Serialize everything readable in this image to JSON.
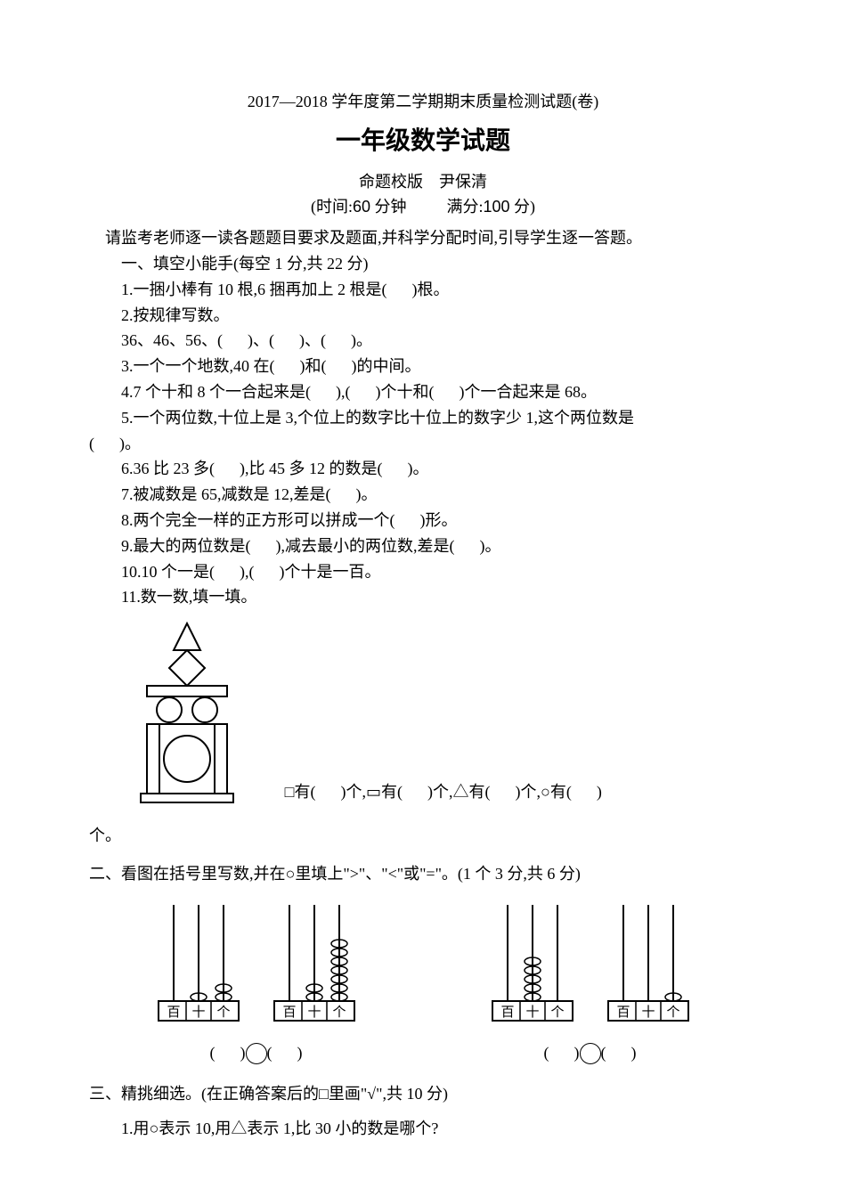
{
  "header": {
    "year_line": "2017—2018 学年度第二学期期末质量检测试题(卷)",
    "title": "一年级数学试题",
    "author_prefix": "命题校版",
    "author_name": "尹保清",
    "time_prefix": "(时间:",
    "time_value": "60",
    "time_unit": "分钟",
    "score_prefix": "满分:",
    "score_value": "100",
    "score_unit": "分)"
  },
  "instruction": "请监考老师逐一读各题题目要求及题面,并科学分配时间,引导学生逐一答题。",
  "section1": {
    "title": "一、填空小能手(每空 1 分,共 22 分)",
    "q1_a": "1.一捆小棒有 10 根,6 捆再加上 2 根是(",
    "q1_b": ")根。",
    "q2": "2.按规律写数。",
    "q2_seq_a": "36、46、56、(",
    "q2_seq_b": ")、(",
    "q2_seq_c": ")、(",
    "q2_seq_d": ")。",
    "q3_a": "3.一个一个地数,40 在(",
    "q3_b": ")和(",
    "q3_c": ")的中间。",
    "q4_a": "4.7 个十和 8 个一合起来是(",
    "q4_b": "),(",
    "q4_c": ")个十和(",
    "q4_d": ")个一合起来是 68。",
    "q5_a": "5.一个两位数,十位上是 3,个位上的数字比十位上的数字少 1,这个两位数是",
    "q5_b": "(",
    "q5_c": ")。",
    "q6_a": "6.36 比 23 多(",
    "q6_b": "),比 45 多 12 的数是(",
    "q6_c": ")。",
    "q7_a": "7.被减数是 65,减数是 12,差是(",
    "q7_b": ")。",
    "q8_a": "8.两个完全一样的正方形可以拼成一个(",
    "q8_b": ")形。",
    "q9_a": "9.最大的两位数是(",
    "q9_b": "),减去最小的两位数,差是(",
    "q9_c": ")。",
    "q10_a": "10.10 个一是(",
    "q10_b": "),(",
    "q10_c": ")个十是一百。",
    "q11": "11.数一数,填一填。",
    "q11_text_a": "□有(",
    "q11_text_b": ")个,▭有(",
    "q11_text_c": ")个,△有(",
    "q11_text_d": ")个,○有(",
    "q11_text_e": ")",
    "q11_tail": "个。"
  },
  "section2": {
    "title": "二、看图在括号里写数,并在○里填上\">\"、\"<\"或\"=\"。(1 个 3 分,共 6 分)",
    "answer_a": "(",
    "answer_b": ")",
    "place_labels": [
      "百",
      "十",
      "个"
    ]
  },
  "section3": {
    "title": "三、精挑细选。(在正确答案后的□里画\"√\",共 10 分)",
    "q1": "1.用○表示 10,用△表示 1,比 30 小的数是哪个?"
  },
  "shape_figure": {
    "stroke": "#000000",
    "stroke_width": 2
  },
  "abacus": {
    "rod_color": "#000000",
    "frame_color": "#000000",
    "bead_color": "#000000",
    "frames": [
      {
        "beads": [
          0,
          1,
          2
        ]
      },
      {
        "beads": [
          0,
          2,
          7
        ]
      },
      {
        "beads": [
          0,
          5,
          0
        ]
      },
      {
        "beads": [
          0,
          0,
          1
        ]
      }
    ]
  }
}
